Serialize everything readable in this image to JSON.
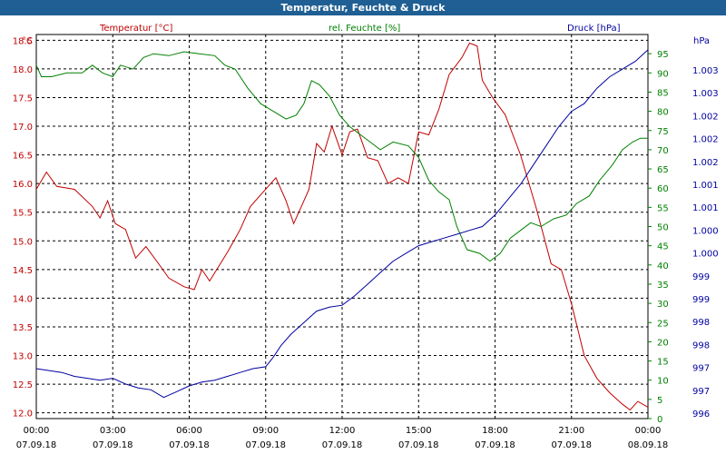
{
  "window": {
    "title": "Temperatur, Feuchte & Druck"
  },
  "colors": {
    "title_bar": "#1f5f93",
    "temp": "#c00000",
    "hum": "#008000",
    "press": "#0000a0",
    "grid": "#000000"
  },
  "chart_data": {
    "type": "line",
    "title": "Temperatur, Feuchte & Druck",
    "grid": true,
    "x_ticks": [
      {
        "time": "00:00",
        "date": "07.09.18"
      },
      {
        "time": "03:00",
        "date": "07.09.18"
      },
      {
        "time": "06:00",
        "date": "07.09.18"
      },
      {
        "time": "09:00",
        "date": "07.09.18"
      },
      {
        "time": "12:00",
        "date": "07.09.18"
      },
      {
        "time": "15:00",
        "date": "07.09.18"
      },
      {
        "time": "18:00",
        "date": "07.09.18"
      },
      {
        "time": "21:00",
        "date": "07.09.18"
      },
      {
        "time": "00:00",
        "date": "08.09.18"
      }
    ],
    "x_range_hours": [
      0,
      24
    ],
    "axes": {
      "temperature": {
        "label": "Temperatur [°C]",
        "unit": "°C",
        "range": [
          11.9,
          18.6
        ],
        "ticks": [
          "18.5",
          "18.0",
          "17.5",
          "17.0",
          "16.5",
          "16.0",
          "15.5",
          "15.0",
          "14.5",
          "14.0",
          "13.5",
          "13.0",
          "12.5",
          "12.0"
        ]
      },
      "humidity": {
        "label": "rel. Feuchte [%]",
        "unit": "%",
        "range": [
          0,
          100
        ],
        "ticks": [
          "95",
          "90",
          "85",
          "80",
          "75",
          "70",
          "65",
          "60",
          "55",
          "50",
          "45",
          "40",
          "35",
          "30",
          "25",
          "20",
          "15",
          "10",
          "5",
          "0"
        ]
      },
      "pressure": {
        "label": "Druck [hPa]",
        "unit": "hPa",
        "ticks": [
          "1.003",
          "1.003",
          "1.002",
          "1.002",
          "1.002",
          "1.001",
          "1.001",
          "1.000",
          "1.000",
          "999",
          "999",
          "998",
          "998",
          "997",
          "997",
          "996"
        ]
      }
    },
    "series": [
      {
        "name": "Temperatur [°C]",
        "axis": "temperature",
        "color": "#c00000",
        "points": [
          [
            0,
            15.9
          ],
          [
            0.4,
            16.2
          ],
          [
            0.8,
            15.95
          ],
          [
            1.5,
            15.9
          ],
          [
            2.2,
            15.6
          ],
          [
            2.2,
            15.6
          ],
          [
            2.5,
            15.4
          ],
          [
            2.8,
            15.7
          ],
          [
            3.1,
            15.3
          ],
          [
            3.5,
            15.2
          ],
          [
            3.9,
            14.7
          ],
          [
            4.3,
            14.9
          ],
          [
            4.8,
            14.6
          ],
          [
            5.2,
            14.35
          ],
          [
            5.8,
            14.2
          ],
          [
            6.2,
            14.15
          ],
          [
            6.5,
            14.5
          ],
          [
            6.8,
            14.3
          ],
          [
            7.5,
            14.8
          ],
          [
            8.0,
            15.2
          ],
          [
            8.4,
            15.6
          ],
          [
            8.9,
            15.85
          ],
          [
            9.4,
            16.1
          ],
          [
            9.8,
            15.7
          ],
          [
            10.1,
            15.3
          ],
          [
            10.4,
            15.6
          ],
          [
            10.7,
            15.9
          ],
          [
            11.0,
            16.7
          ],
          [
            11.3,
            16.55
          ],
          [
            11.6,
            17.0
          ],
          [
            12.0,
            16.5
          ],
          [
            12.3,
            16.9
          ],
          [
            12.6,
            16.95
          ],
          [
            13.0,
            16.45
          ],
          [
            13.4,
            16.4
          ],
          [
            13.8,
            16.0
          ],
          [
            14.2,
            16.1
          ],
          [
            14.6,
            16.0
          ],
          [
            15.0,
            16.9
          ],
          [
            15.4,
            16.85
          ],
          [
            15.8,
            17.3
          ],
          [
            16.2,
            17.9
          ],
          [
            16.7,
            18.2
          ],
          [
            17.0,
            18.45
          ],
          [
            17.3,
            18.4
          ],
          [
            17.5,
            17.8
          ],
          [
            17.9,
            17.5
          ],
          [
            18.4,
            17.2
          ],
          [
            19.0,
            16.5
          ],
          [
            19.6,
            15.6
          ],
          [
            20.2,
            14.6
          ],
          [
            20.6,
            14.5
          ],
          [
            21.0,
            13.9
          ],
          [
            21.5,
            13.0
          ],
          [
            22.0,
            12.6
          ],
          [
            22.5,
            12.35
          ],
          [
            23.0,
            12.15
          ],
          [
            23.3,
            12.05
          ],
          [
            23.6,
            12.2
          ],
          [
            24,
            12.1
          ]
        ]
      },
      {
        "name": "rel. Feuchte [%]",
        "axis": "humidity",
        "color": "#008000",
        "points": [
          [
            0,
            92
          ],
          [
            0.2,
            89
          ],
          [
            0.6,
            89
          ],
          [
            1.2,
            90
          ],
          [
            1.8,
            90
          ],
          [
            2.2,
            92
          ],
          [
            2.6,
            90
          ],
          [
            3.0,
            89
          ],
          [
            3.3,
            92
          ],
          [
            3.8,
            91
          ],
          [
            4.2,
            94
          ],
          [
            4.6,
            95
          ],
          [
            5.2,
            94.5
          ],
          [
            5.8,
            95.5
          ],
          [
            6.4,
            95
          ],
          [
            7.0,
            94.5
          ],
          [
            7.4,
            92
          ],
          [
            7.8,
            91
          ],
          [
            8.3,
            86
          ],
          [
            8.8,
            82
          ],
          [
            9.3,
            80
          ],
          [
            9.8,
            78
          ],
          [
            10.2,
            79
          ],
          [
            10.5,
            82
          ],
          [
            10.8,
            88
          ],
          [
            11.1,
            87
          ],
          [
            11.5,
            84
          ],
          [
            11.9,
            79
          ],
          [
            12.3,
            76
          ],
          [
            12.7,
            74
          ],
          [
            13.1,
            72
          ],
          [
            13.5,
            70
          ],
          [
            14.0,
            72
          ],
          [
            14.6,
            71
          ],
          [
            15.0,
            68
          ],
          [
            15.4,
            62
          ],
          [
            15.8,
            59
          ],
          [
            16.2,
            57
          ],
          [
            16.5,
            50
          ],
          [
            16.9,
            44
          ],
          [
            17.4,
            43
          ],
          [
            17.8,
            41
          ],
          [
            18.2,
            43
          ],
          [
            18.6,
            47
          ],
          [
            19.0,
            49
          ],
          [
            19.4,
            51
          ],
          [
            19.8,
            50
          ],
          [
            20.3,
            52
          ],
          [
            20.8,
            53
          ],
          [
            21.2,
            56
          ],
          [
            21.7,
            58
          ],
          [
            22.1,
            62
          ],
          [
            22.6,
            66
          ],
          [
            23.0,
            70
          ],
          [
            23.4,
            72
          ],
          [
            23.7,
            73
          ],
          [
            24,
            73
          ]
        ]
      },
      {
        "name": "Druck [hPa]",
        "axis": "pressure",
        "color": "#0000a0",
        "points": [
          [
            0,
            13
          ],
          [
            0.5,
            12.5
          ],
          [
            1.0,
            12
          ],
          [
            1.5,
            11
          ],
          [
            2.0,
            10.5
          ],
          [
            2.5,
            10
          ],
          [
            3.0,
            10.5
          ],
          [
            3.5,
            9
          ],
          [
            4.0,
            8
          ],
          [
            4.5,
            7.5
          ],
          [
            5.0,
            5.5
          ],
          [
            5.5,
            7
          ],
          [
            6.0,
            8.5
          ],
          [
            6.5,
            9.5
          ],
          [
            7.0,
            10
          ],
          [
            7.5,
            11
          ],
          [
            8.0,
            12
          ],
          [
            8.5,
            13
          ],
          [
            9.0,
            13.5
          ],
          [
            9.3,
            16
          ],
          [
            9.6,
            19
          ],
          [
            10.0,
            22
          ],
          [
            10.5,
            25
          ],
          [
            11.0,
            28
          ],
          [
            11.5,
            29
          ],
          [
            12.0,
            29.5
          ],
          [
            12.5,
            32
          ],
          [
            13.0,
            35
          ],
          [
            13.5,
            38
          ],
          [
            14.0,
            41
          ],
          [
            14.5,
            43
          ],
          [
            15.0,
            45
          ],
          [
            15.5,
            46
          ],
          [
            16.0,
            47
          ],
          [
            16.5,
            48
          ],
          [
            17.0,
            49
          ],
          [
            17.5,
            50
          ],
          [
            18.0,
            53
          ],
          [
            18.5,
            57
          ],
          [
            19.0,
            61
          ],
          [
            19.5,
            66
          ],
          [
            20.0,
            71
          ],
          [
            20.5,
            76
          ],
          [
            21.0,
            80
          ],
          [
            21.5,
            82
          ],
          [
            22.0,
            86
          ],
          [
            22.5,
            89
          ],
          [
            23.0,
            91
          ],
          [
            23.5,
            93
          ],
          [
            24,
            96
          ]
        ]
      }
    ]
  }
}
